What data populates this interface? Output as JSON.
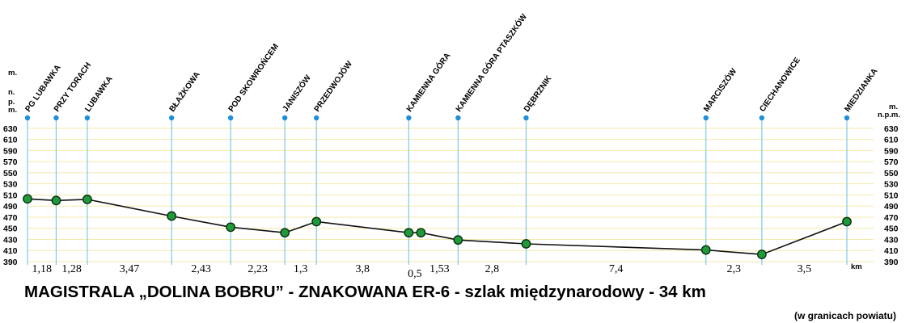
{
  "chart_data": {
    "type": "line",
    "title": "MAGISTRALA „DOLINA BOBRU” - ZNAKOWANA ER-6 - szlak międzynarodowy - 34 km",
    "subtitle": "(w granicach powiatu)",
    "y_unit_left": "m. n. p. m.",
    "y_unit_right": "m. n.p.m.",
    "x_unit": "km",
    "ylim": [
      390,
      640
    ],
    "yticks": [
      390,
      410,
      430,
      450,
      470,
      490,
      510,
      530,
      550,
      570,
      590,
      610,
      630
    ],
    "grid": true,
    "stations": [
      {
        "name": "PG LUBAWKA",
        "km": 0
      },
      {
        "name": "PRZY TORACH",
        "km": 1.18
      },
      {
        "name": "LUBAWKA",
        "km": 2.46
      },
      {
        "name": "BŁAŻKOWA",
        "km": 5.93
      },
      {
        "name": "POD SKOWROŃCEM",
        "km": 8.36
      },
      {
        "name": "JANISZÓW",
        "km": 10.59
      },
      {
        "name": "PRZEDWOJÓW",
        "km": 11.89
      },
      {
        "name": "KAMIENNA GÓRA",
        "km": 15.69
      },
      {
        "name": "KAMIENNA GÓRA PTASZKÓW",
        "km": 17.72
      },
      {
        "name": "DĘBRZNIK",
        "km": 20.52
      },
      {
        "name": "MARCISZÓW",
        "km": 27.92
      },
      {
        "name": "CIECHANOWICE",
        "km": 30.22
      },
      {
        "name": "MIEDZIANKA",
        "km": 33.72
      }
    ],
    "points": [
      {
        "km": 0,
        "elevation": 503
      },
      {
        "km": 1.18,
        "elevation": 500
      },
      {
        "km": 2.46,
        "elevation": 502
      },
      {
        "km": 5.93,
        "elevation": 472
      },
      {
        "km": 8.36,
        "elevation": 452
      },
      {
        "km": 10.59,
        "elevation": 442
      },
      {
        "km": 11.89,
        "elevation": 462
      },
      {
        "km": 15.69,
        "elevation": 442
      },
      {
        "km": 16.19,
        "elevation": 442
      },
      {
        "km": 17.72,
        "elevation": 429
      },
      {
        "km": 20.52,
        "elevation": 422
      },
      {
        "km": 27.92,
        "elevation": 411
      },
      {
        "km": 30.22,
        "elevation": 403
      },
      {
        "km": 33.72,
        "elevation": 462
      }
    ],
    "segments": [
      {
        "label": "1,18",
        "from": 0,
        "to": 1.18
      },
      {
        "label": "1,28",
        "from": 1.18,
        "to": 2.46
      },
      {
        "label": "3,47",
        "from": 2.46,
        "to": 5.93
      },
      {
        "label": "2,43",
        "from": 5.93,
        "to": 8.36
      },
      {
        "label": "2,23",
        "from": 8.36,
        "to": 10.59
      },
      {
        "label": "1,3",
        "from": 10.59,
        "to": 11.89
      },
      {
        "label": "3,8",
        "from": 11.89,
        "to": 15.69
      },
      {
        "label": "0,5",
        "from": 15.69,
        "to": 16.19
      },
      {
        "label": "1,53",
        "from": 16.19,
        "to": 17.72
      },
      {
        "label": "2,8",
        "from": 17.72,
        "to": 20.52
      },
      {
        "label": "7,4",
        "from": 20.52,
        "to": 27.92
      },
      {
        "label": "2,3",
        "from": 27.92,
        "to": 30.22
      },
      {
        "label": "3,5",
        "from": 30.22,
        "to": 33.72
      }
    ],
    "colors": {
      "grid": "#f3e9a8",
      "station_line": "#7fc8ec",
      "station_dot": "#1f8ed8",
      "profile": "#111111",
      "marker_fill": "#1e9a3a",
      "marker_stroke": "#0b2e10"
    }
  }
}
